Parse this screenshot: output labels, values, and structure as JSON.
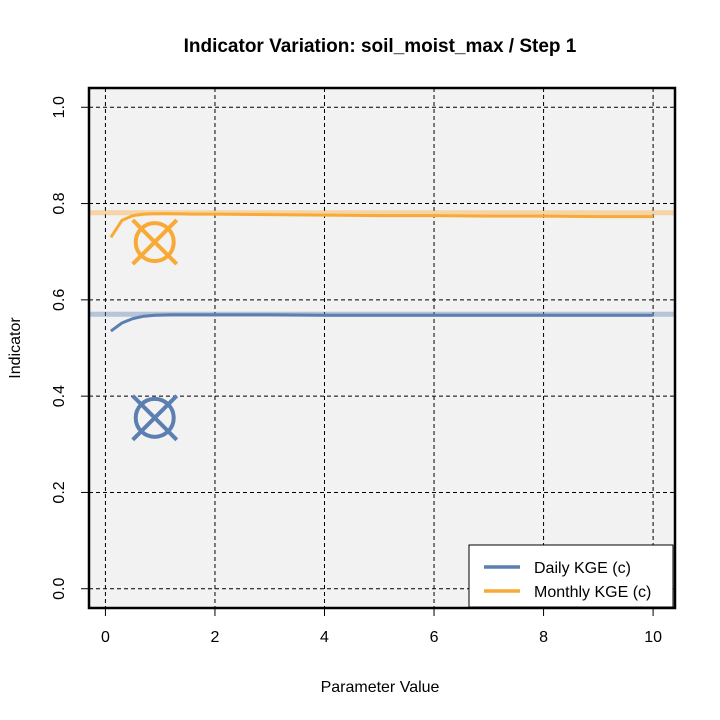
{
  "chart_data": {
    "type": "line",
    "title": "Indicator Variation: soil_moist_max / Step 1",
    "xlabel": "Parameter Value",
    "ylabel": "Indicator",
    "xlim": [
      -0.3,
      10.4
    ],
    "ylim": [
      -0.04,
      1.04
    ],
    "xticks": [
      0,
      2,
      4,
      6,
      8,
      10
    ],
    "xtick_labels": [
      "0",
      "2",
      "4",
      "6",
      "8",
      "10"
    ],
    "yticks": [
      0.0,
      0.2,
      0.4,
      0.6,
      0.8,
      1.0
    ],
    "ytick_labels": [
      "0.0",
      "0.2",
      "0.4",
      "0.6",
      "0.8",
      "1.0"
    ],
    "grid": true,
    "legend_position": "bottom-right",
    "background": "#f2f2f2",
    "series": [
      {
        "name": "Daily KGE (c)",
        "color": "#5b7fb0",
        "x": [
          0.1,
          0.3,
          0.5,
          0.7,
          0.9,
          1.2,
          1.6,
          2.0,
          3.0,
          4.0,
          5.0,
          6.0,
          7.0,
          8.0,
          9.0,
          10.0
        ],
        "y": [
          0.535,
          0.552,
          0.561,
          0.566,
          0.568,
          0.569,
          0.569,
          0.569,
          0.569,
          0.568,
          0.568,
          0.568,
          0.568,
          0.568,
          0.568,
          0.568
        ],
        "reference_value": 0.57,
        "marker": {
          "x": 0.9,
          "y": 0.355
        }
      },
      {
        "name": "Monthly KGE (c)",
        "color": "#f9a935",
        "x": [
          0.1,
          0.3,
          0.5,
          0.7,
          0.9,
          1.2,
          1.6,
          2.0,
          3.0,
          4.0,
          5.0,
          6.0,
          7.0,
          8.0,
          9.0,
          10.0
        ],
        "y": [
          0.73,
          0.765,
          0.775,
          0.778,
          0.779,
          0.779,
          0.778,
          0.778,
          0.777,
          0.776,
          0.775,
          0.775,
          0.774,
          0.774,
          0.773,
          0.773
        ],
        "reference_value": 0.781,
        "marker": {
          "x": 0.9,
          "y": 0.72
        }
      }
    ]
  }
}
